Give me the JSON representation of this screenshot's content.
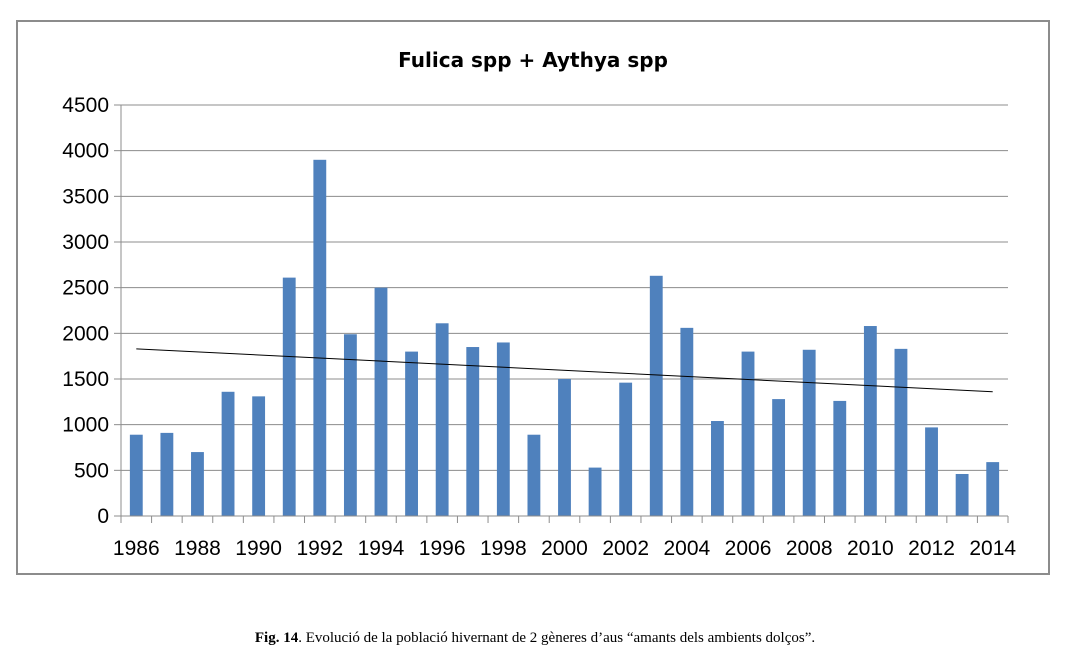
{
  "chart_data": {
    "type": "bar",
    "title": "Fulica spp + Aythya spp",
    "categories": [
      1986,
      1987,
      1988,
      1989,
      1990,
      1991,
      1992,
      1993,
      1994,
      1995,
      1996,
      1997,
      1998,
      1999,
      2000,
      2001,
      2002,
      2003,
      2004,
      2005,
      2006,
      2007,
      2008,
      2009,
      2010,
      2011,
      2012,
      2013,
      2014
    ],
    "x_tick_labels": [
      "1986",
      "1988",
      "1990",
      "1992",
      "1994",
      "1996",
      "1998",
      "2000",
      "2002",
      "2004",
      "2006",
      "2008",
      "2010",
      "2012",
      "2014"
    ],
    "values": [
      890,
      910,
      700,
      1360,
      1310,
      2610,
      3900,
      1990,
      2500,
      1800,
      2110,
      1850,
      1900,
      890,
      1500,
      530,
      1460,
      2630,
      2060,
      1040,
      1800,
      1280,
      1820,
      1260,
      2080,
      1830,
      970,
      460,
      590
    ],
    "ylim": [
      0,
      4500
    ],
    "y_ticks": [
      0,
      500,
      1000,
      1500,
      2000,
      2500,
      3000,
      3500,
      4000,
      4500
    ],
    "bar_color": "#4f81bd",
    "grid": true,
    "trendline": {
      "type": "linear",
      "start": 1830,
      "end": 1360
    },
    "xlabel": "",
    "ylabel": ""
  },
  "caption": {
    "label": "Fig. 14",
    "text": ". Evolució de la població hivernant de 2 gèneres d’aus “amants dels ambients dolços”."
  }
}
